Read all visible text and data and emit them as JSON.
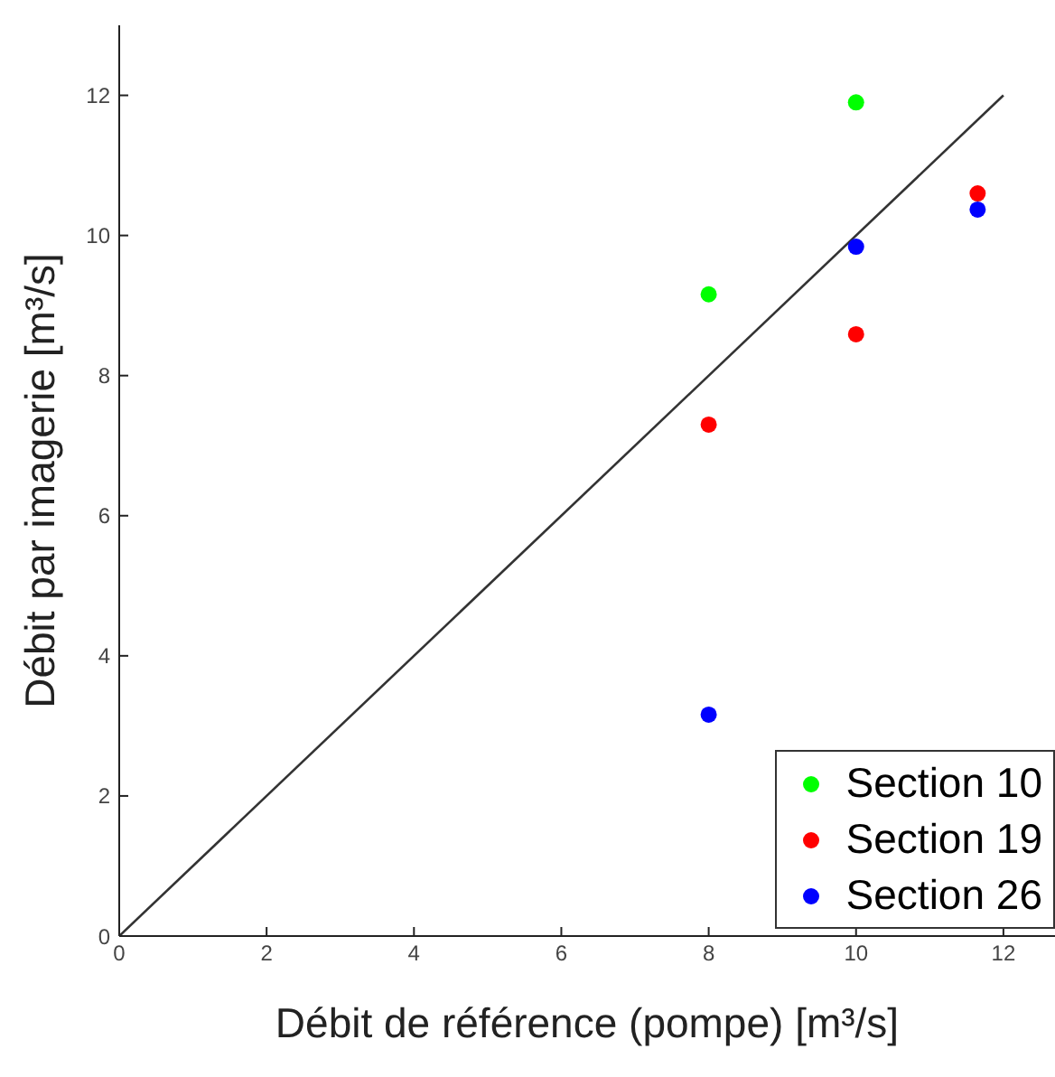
{
  "chart_data": {
    "type": "scatter",
    "xlabel": "Débit de référence (pompe) [m³/s]",
    "ylabel": "Débit par imagerie [m³/s]",
    "xlim": [
      0,
      12.7
    ],
    "xticks": [
      0,
      2,
      4,
      6,
      8,
      10,
      12
    ],
    "ylim": [
      0,
      13
    ],
    "yticks": [
      0,
      2,
      4,
      6,
      8,
      10,
      12
    ],
    "grid": false,
    "legend": "bottom right",
    "marker": "circle",
    "series": [
      {
        "name": "Section 10",
        "color": "#00ff00",
        "x": [
          8,
          10
        ],
        "values": [
          9.16,
          11.9
        ]
      },
      {
        "name": "Section 19",
        "color": "#ff0000",
        "x": [
          8,
          10,
          11.65
        ],
        "values": [
          7.3,
          8.59,
          10.6
        ]
      },
      {
        "name": "Section 26",
        "color": "#0000ff",
        "x": [
          8,
          10,
          11.65
        ],
        "values": [
          3.16,
          9.84,
          10.37
        ]
      },
      {
        "type": "line",
        "color": "#333333",
        "x": [
          0,
          12
        ],
        "values": [
          0,
          12
        ],
        "marker": "none"
      }
    ]
  }
}
